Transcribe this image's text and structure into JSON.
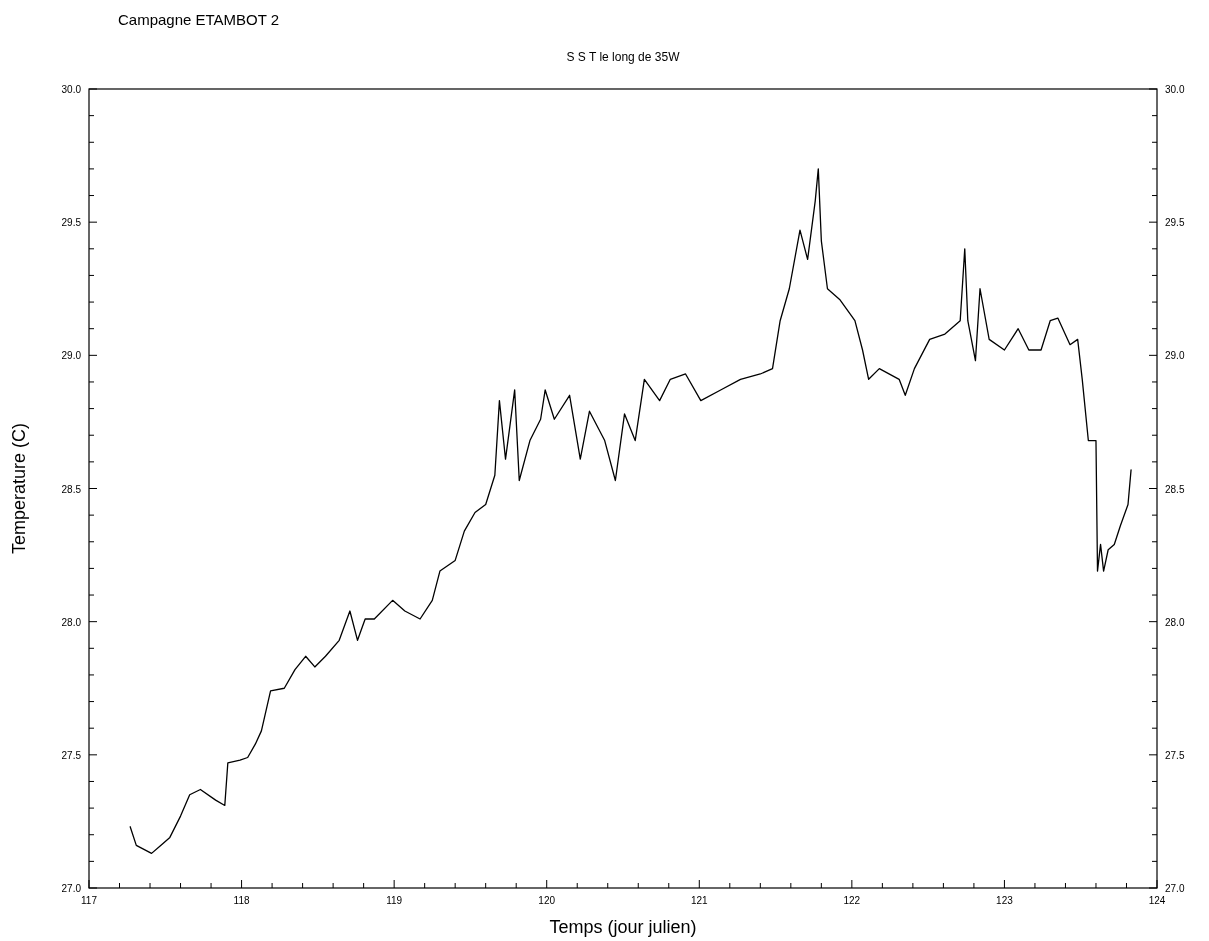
{
  "chart_data": {
    "type": "line",
    "title": "Campagne ETAMBOT 2",
    "subtitle": "S S T  le long de 35W",
    "xlabel": "Temps (jour julien)",
    "ylabel": "Temperature (C)",
    "xlim": [
      117,
      124
    ],
    "ylim": [
      27,
      30
    ],
    "y2lim": [
      27,
      30
    ],
    "xticks": [
      117,
      {
        "value": 117.2,
        "label": null
      },
      {
        "value": 117.4,
        "label": null
      },
      {
        "value": 117.6,
        "label": null
      },
      {
        "value": 117.8,
        "label": null
      },
      118,
      {
        "value": 118.2,
        "label": null
      },
      {
        "value": 118.4,
        "label": null
      },
      {
        "value": 118.6,
        "label": null
      },
      {
        "value": 118.8,
        "label": null
      },
      119,
      {
        "value": 119.2,
        "label": null
      },
      {
        "value": 119.4,
        "label": null
      },
      {
        "value": 119.6,
        "label": null
      },
      {
        "value": 119.8,
        "label": null
      },
      120,
      {
        "value": 120.2,
        "label": null
      },
      {
        "value": 120.4,
        "label": null
      },
      {
        "value": 120.6,
        "label": null
      },
      {
        "value": 120.8,
        "label": null
      },
      121,
      {
        "value": 121.2,
        "label": null
      },
      {
        "value": 121.4,
        "label": null
      },
      {
        "value": 121.6,
        "label": null
      },
      {
        "value": 121.8,
        "label": null
      },
      122,
      {
        "value": 122.2,
        "label": null
      },
      {
        "value": 122.4,
        "label": null
      },
      {
        "value": 122.6,
        "label": null
      },
      {
        "value": 122.8,
        "label": null
      },
      123,
      {
        "value": 123.2,
        "label": null
      },
      {
        "value": 123.4,
        "label": null
      },
      {
        "value": 123.6,
        "label": null
      },
      {
        "value": 123.8,
        "label": null
      },
      124
    ],
    "yticks": [
      {
        "value": 27,
        "label": "27.0"
      },
      {
        "value": 27.1,
        "label": null
      },
      {
        "value": 27.2,
        "label": null
      },
      {
        "value": 27.3,
        "label": null
      },
      {
        "value": 27.4,
        "label": null
      },
      {
        "value": 27.5,
        "label": "27.5"
      },
      {
        "value": 27.6,
        "label": null
      },
      {
        "value": 27.7,
        "label": null
      },
      {
        "value": 27.8,
        "label": null
      },
      {
        "value": 27.9,
        "label": null
      },
      {
        "value": 28,
        "label": "28.0"
      },
      {
        "value": 28.1,
        "label": null
      },
      {
        "value": 28.2,
        "label": null
      },
      {
        "value": 28.3,
        "label": null
      },
      {
        "value": 28.4,
        "label": null
      },
      {
        "value": 28.5,
        "label": "28.5"
      },
      {
        "value": 28.6,
        "label": null
      },
      {
        "value": 28.7,
        "label": null
      },
      {
        "value": 28.8,
        "label": null
      },
      {
        "value": 28.9,
        "label": null
      },
      {
        "value": 29,
        "label": "29.0"
      },
      {
        "value": 29.1,
        "label": null
      },
      {
        "value": 29.2,
        "label": null
      },
      {
        "value": 29.3,
        "label": null
      },
      {
        "value": 29.4,
        "label": null
      },
      {
        "value": 29.5,
        "label": "29.5"
      },
      {
        "value": 29.6,
        "label": null
      },
      {
        "value": 29.7,
        "label": null
      },
      {
        "value": 29.8,
        "label": null
      },
      {
        "value": 29.9,
        "label": null
      },
      {
        "value": 30,
        "label": "30.0"
      }
    ],
    "y2ticks": [
      {
        "value": 27,
        "label": "27.0"
      },
      {
        "value": 27.1,
        "label": null
      },
      {
        "value": 27.2,
        "label": null
      },
      {
        "value": 27.3,
        "label": null
      },
      {
        "value": 27.4,
        "label": null
      },
      {
        "value": 27.5,
        "label": "27.5"
      },
      {
        "value": 27.6,
        "label": null
      },
      {
        "value": 27.7,
        "label": null
      },
      {
        "value": 27.8,
        "label": null
      },
      {
        "value": 27.9,
        "label": null
      },
      {
        "value": 28,
        "label": "28.0"
      },
      {
        "value": 28.1,
        "label": null
      },
      {
        "value": 28.2,
        "label": null
      },
      {
        "value": 28.3,
        "label": null
      },
      {
        "value": 28.4,
        "label": null
      },
      {
        "value": 28.5,
        "label": "28.5"
      },
      {
        "value": 28.6,
        "label": null
      },
      {
        "value": 28.7,
        "label": null
      },
      {
        "value": 28.8,
        "label": null
      },
      {
        "value": 28.9,
        "label": null
      },
      {
        "value": 29,
        "label": "29.0"
      },
      {
        "value": 29.1,
        "label": null
      },
      {
        "value": 29.2,
        "label": null
      },
      {
        "value": 29.3,
        "label": null
      },
      {
        "value": 29.4,
        "label": null
      },
      {
        "value": 29.5,
        "label": "29.5"
      },
      {
        "value": 29.6,
        "label": null
      },
      {
        "value": 29.7,
        "label": null
      },
      {
        "value": 29.8,
        "label": null
      },
      {
        "value": 29.9,
        "label": null
      },
      {
        "value": 30,
        "label": "30.0"
      }
    ],
    "grid": false,
    "series": [
      {
        "color": "#000000",
        "x": [
          117.27,
          117.31,
          117.41,
          117.47,
          117.53,
          117.6,
          117.66,
          117.73,
          117.83,
          117.89,
          117.91,
          117.99,
          118.04,
          118.09,
          118.13,
          118.19,
          118.28,
          118.35,
          118.42,
          118.48,
          118.55,
          118.64,
          118.71,
          118.76,
          118.81,
          118.87,
          118.99,
          119.07,
          119.17,
          119.25,
          119.3,
          119.4,
          119.46,
          119.53,
          119.6,
          119.66,
          119.69,
          119.73,
          119.79,
          119.82,
          119.89,
          119.96,
          119.99,
          120.05,
          120.15,
          120.22,
          120.28,
          120.38,
          120.45,
          120.51,
          120.58,
          120.64,
          120.74,
          120.81,
          120.91,
          121.01,
          121.14,
          121.27,
          121.4,
          121.48,
          121.53,
          121.59,
          121.66,
          121.71,
          121.76,
          121.78,
          121.8,
          121.84,
          121.92,
          122.02,
          122.07,
          122.11,
          122.18,
          122.31,
          122.35,
          122.41,
          122.51,
          122.61,
          122.71,
          122.74,
          122.76,
          122.81,
          122.84,
          122.9,
          123.0,
          123.09,
          123.16,
          123.24,
          123.3,
          123.35,
          123.43,
          123.48,
          123.51,
          123.55,
          123.6,
          123.61,
          123.63,
          123.65,
          123.68,
          123.72,
          123.76,
          123.81,
          123.83
        ],
        "values": [
          27.23,
          27.16,
          27.13,
          27.16,
          27.19,
          27.27,
          27.35,
          27.37,
          27.33,
          27.31,
          27.47,
          27.48,
          27.49,
          27.54,
          27.59,
          27.74,
          27.75,
          27.82,
          27.87,
          27.83,
          27.87,
          27.93,
          28.04,
          27.93,
          28.01,
          28.01,
          28.08,
          28.04,
          28.01,
          28.08,
          28.19,
          28.23,
          28.34,
          28.41,
          28.44,
          28.55,
          28.83,
          28.61,
          28.87,
          28.53,
          28.68,
          28.76,
          28.87,
          28.76,
          28.85,
          28.61,
          28.79,
          28.68,
          28.53,
          28.78,
          28.68,
          28.91,
          28.83,
          28.91,
          28.93,
          28.83,
          28.87,
          28.91,
          28.93,
          28.95,
          29.13,
          29.25,
          29.47,
          29.36,
          29.58,
          29.7,
          29.43,
          29.25,
          29.21,
          29.13,
          29.02,
          28.91,
          28.95,
          28.91,
          28.85,
          28.95,
          29.06,
          29.08,
          29.13,
          29.4,
          29.13,
          28.98,
          29.25,
          29.06,
          29.02,
          29.1,
          29.02,
          29.02,
          29.13,
          29.14,
          29.04,
          29.06,
          28.91,
          28.68,
          28.68,
          28.19,
          28.29,
          28.19,
          28.27,
          28.29,
          28.36,
          28.44,
          28.57
        ]
      }
    ]
  }
}
